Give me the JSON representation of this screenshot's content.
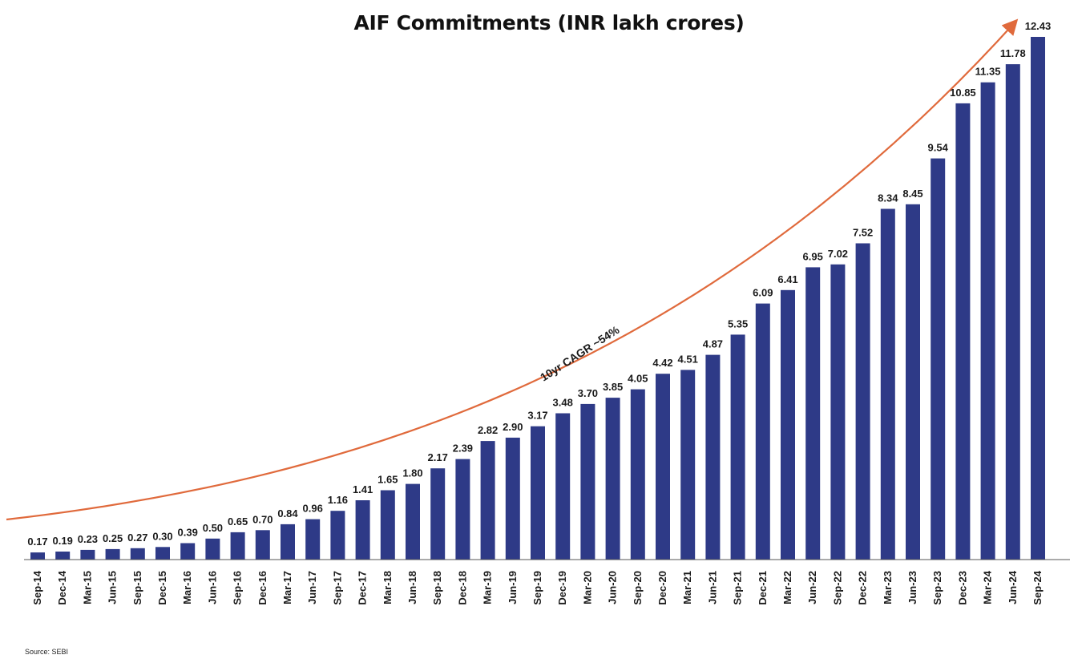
{
  "colors": {
    "bar": "#2e3a87",
    "trend": "#e06a3c",
    "axis": "#555555",
    "text": "#1a1a1a"
  },
  "chart_data": {
    "type": "bar",
    "title": "AIF Commitments (INR lakh crores)",
    "xlabel": "",
    "ylabel": "",
    "ylim": [
      0,
      12.43
    ],
    "grid": false,
    "legend": "none",
    "categories": [
      "Sep-14",
      "Dec-14",
      "Mar-15",
      "Jun-15",
      "Sep-15",
      "Dec-15",
      "Mar-16",
      "Jun-16",
      "Sep-16",
      "Dec-16",
      "Mar-17",
      "Jun-17",
      "Sep-17",
      "Dec-17",
      "Mar-18",
      "Jun-18",
      "Sep-18",
      "Dec-18",
      "Mar-19",
      "Jun-19",
      "Sep-19",
      "Dec-19",
      "Mar-20",
      "Jun-20",
      "Sep-20",
      "Dec-20",
      "Mar-21",
      "Jun-21",
      "Sep-21",
      "Dec-21",
      "Mar-22",
      "Jun-22",
      "Sep-22",
      "Dec-22",
      "Mar-23",
      "Jun-23",
      "Sep-23",
      "Dec-23",
      "Mar-24",
      "Jun-24",
      "Sep-24"
    ],
    "values": [
      0.17,
      0.19,
      0.23,
      0.25,
      0.27,
      0.3,
      0.39,
      0.5,
      0.65,
      0.7,
      0.84,
      0.96,
      1.16,
      1.41,
      1.65,
      1.8,
      2.17,
      2.39,
      2.82,
      2.9,
      3.17,
      3.48,
      3.7,
      3.85,
      4.05,
      4.42,
      4.51,
      4.87,
      5.35,
      6.09,
      6.41,
      6.95,
      7.02,
      7.52,
      8.34,
      8.45,
      9.54,
      10.85,
      11.35,
      11.78,
      12.43
    ],
    "value_labels": [
      "0.17",
      "0.19",
      "0.23",
      "0.25",
      "0.27",
      "0.30",
      "0.39",
      "0.50",
      "0.65",
      "0.70",
      "0.84",
      "0.96",
      "1.16",
      "1.41",
      "1.65",
      "1.80",
      "2.17",
      "2.39",
      "2.82",
      "2.90",
      "3.17",
      "3.48",
      "3.70",
      "3.85",
      "4.05",
      "4.42",
      "4.51",
      "4.87",
      "5.35",
      "6.09",
      "6.41",
      "6.95",
      "7.02",
      "7.52",
      "8.34",
      "8.45",
      "9.54",
      "10.85",
      "11.35",
      "11.78",
      "12.43"
    ],
    "annotations": [
      {
        "text": "10yr CAGR ~54%",
        "kind": "trend-arrow"
      }
    ]
  },
  "source_note": "Source: SEBI"
}
